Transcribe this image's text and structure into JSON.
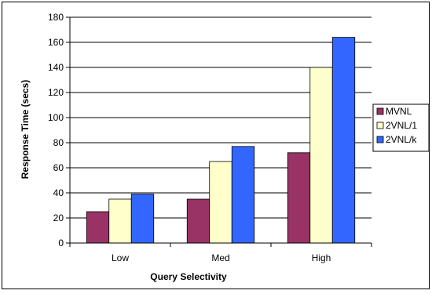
{
  "chart_data": {
    "type": "bar",
    "title": "",
    "xlabel": "Query Selectivity",
    "ylabel": "Response Time (secs)",
    "categories": [
      "Low",
      "Med",
      "High"
    ],
    "ylim": [
      0,
      180
    ],
    "yticks": [
      0,
      20,
      40,
      60,
      80,
      100,
      120,
      140,
      160,
      180
    ],
    "grid": "horizontal",
    "legend_position": "right",
    "series": [
      {
        "name": "MVNL",
        "values": [
          25,
          35,
          72
        ],
        "color": "#993366"
      },
      {
        "name": "2VNL/1",
        "values": [
          35,
          65,
          140
        ],
        "color": "#FFFFCC"
      },
      {
        "name": "2VNL/k",
        "values": [
          39,
          77,
          164
        ],
        "color": "#3366FF"
      }
    ]
  }
}
